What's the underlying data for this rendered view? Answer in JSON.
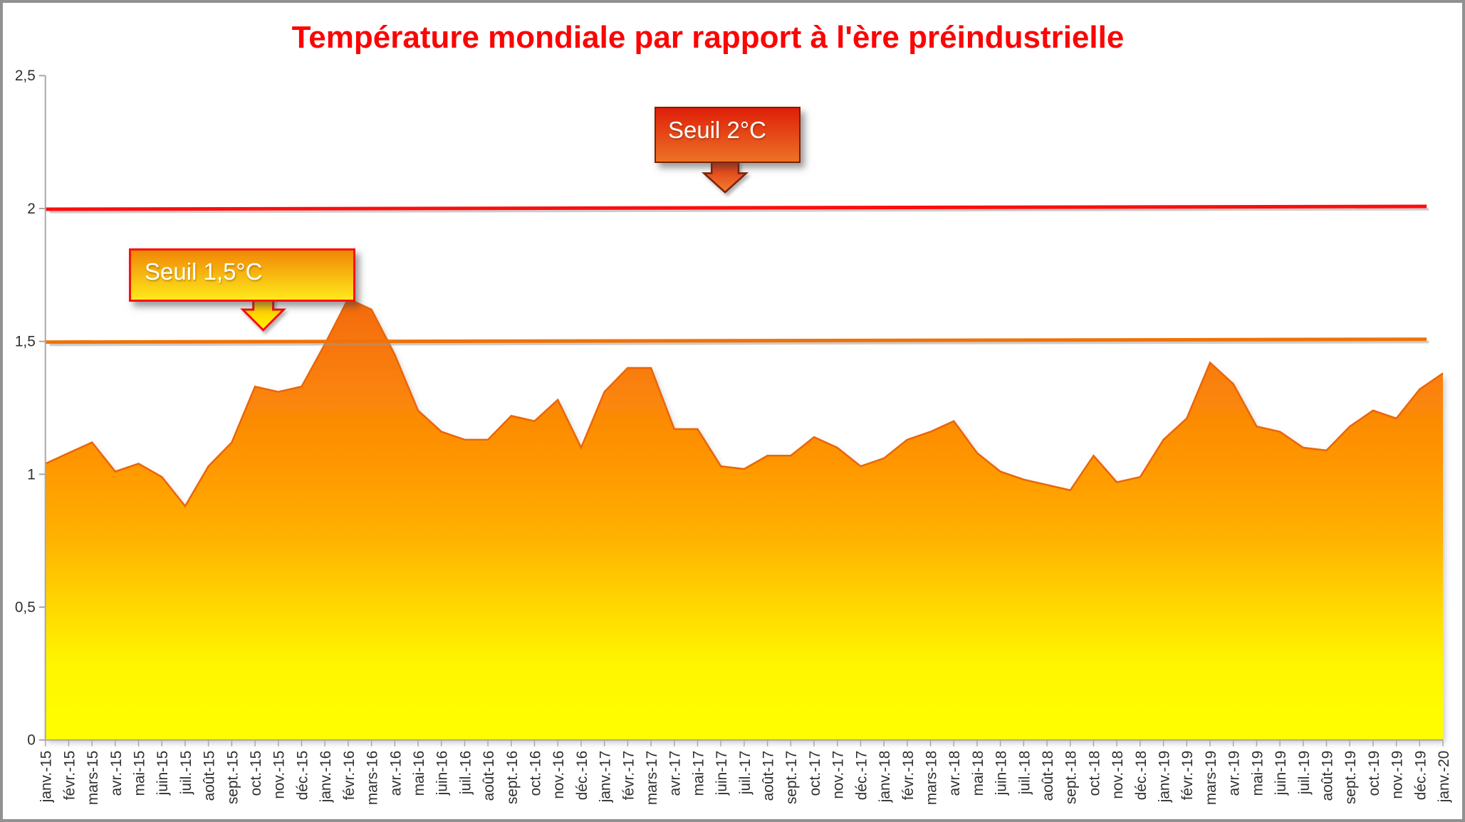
{
  "title": {
    "text": "Température mondiale par rapport à l'ère préindustrielle",
    "color": "#FB0505"
  },
  "chart_data": {
    "type": "area",
    "title": "Température mondiale par rapport à l'ère préindustrielle",
    "xlabel": "",
    "ylabel": "",
    "ylim": [
      0,
      2.5
    ],
    "grid": false,
    "legend": false,
    "x": [
      "janv.-15",
      "févr.-15",
      "mars-15",
      "avr.-15",
      "mai-15",
      "juin-15",
      "juil.-15",
      "août-15",
      "sept.-15",
      "oct.-15",
      "nov.-15",
      "déc.-15",
      "janv.-16",
      "févr.-16",
      "mars-16",
      "avr.-16",
      "mai-16",
      "juin-16",
      "juil.-16",
      "août-16",
      "sept.-16",
      "oct.-16",
      "nov.-16",
      "déc.-16",
      "janv.-17",
      "févr.-17",
      "mars-17",
      "avr.-17",
      "mai-17",
      "juin-17",
      "juil.-17",
      "août-17",
      "sept.-17",
      "oct.-17",
      "nov.-17",
      "déc.-17",
      "janv.-18",
      "févr.-18",
      "mars-18",
      "avr.-18",
      "mai-18",
      "juin-18",
      "juil.-18",
      "août-18",
      "sept.-18",
      "oct.-18",
      "nov.-18",
      "déc.-18",
      "janv.-19",
      "févr.-19",
      "mars-19",
      "avr.-19",
      "mai-19",
      "juin-19",
      "juil.-19",
      "août-19",
      "sept.-19",
      "oct.-19",
      "nov.-19",
      "déc.-19",
      "janv.-20"
    ],
    "values": [
      1.04,
      1.08,
      1.12,
      1.01,
      1.04,
      0.99,
      0.88,
      1.03,
      1.12,
      1.33,
      1.31,
      1.33,
      1.49,
      1.66,
      1.62,
      1.45,
      1.24,
      1.16,
      1.13,
      1.13,
      1.22,
      1.2,
      1.28,
      1.1,
      1.31,
      1.4,
      1.4,
      1.17,
      1.17,
      1.03,
      1.02,
      1.07,
      1.07,
      1.14,
      1.1,
      1.03,
      1.06,
      1.13,
      1.16,
      1.2,
      1.08,
      1.01,
      0.98,
      0.96,
      0.94,
      1.07,
      0.97,
      0.99,
      1.13,
      1.21,
      1.42,
      1.34,
      1.18,
      1.16,
      1.1,
      1.09,
      1.18,
      1.24,
      1.21,
      1.32,
      1.38
    ],
    "ytick_values": [
      0,
      0.5,
      1,
      1.5,
      2,
      2.5
    ],
    "ytick_labels": [
      "0",
      "0,5",
      "1",
      "1,5",
      "2",
      "2,5"
    ],
    "area_gradient": [
      {
        "offset": "0%",
        "color": "#F2660C"
      },
      {
        "offset": "25%",
        "color": "#FB8508"
      },
      {
        "offset": "40%",
        "color": "#FF9800"
      },
      {
        "offset": "56%",
        "color": "#FFB306"
      },
      {
        "offset": "72%",
        "color": "#FFDB00"
      },
      {
        "offset": "83%",
        "color": "#FFF500"
      },
      {
        "offset": "100%",
        "color": "#FFFF00"
      }
    ],
    "edge_color": "#EA6509",
    "axis_color": "#A8A8A8",
    "label_color": "#303030",
    "thresholds": [
      {
        "name": "seuil-2c",
        "label": "Seuil 2°C",
        "value": 2,
        "line_color": "#FD0D0D"
      },
      {
        "name": "seuil-1-5c",
        "label": "Seuil 1,5°C",
        "value": 1.5,
        "line_color": "#F07208"
      }
    ]
  },
  "callouts": [
    {
      "text": "Seuil 2°C",
      "fill_top": "#DF1F09",
      "fill_bottom": "#ED7226",
      "border": "#7C2108",
      "arrow_top": "#E03110",
      "arrow_bottom": "#F08030",
      "text_color": "#FFFFFF"
    },
    {
      "text": "Seuil 1,5°C",
      "fill_top": "#F08705",
      "fill_bottom": "#FFE91C",
      "border": "#FA100E",
      "arrow_top": "#FBB60A",
      "arrow_bottom": "#FFF600",
      "text_color": "#FFFFFF"
    }
  ]
}
